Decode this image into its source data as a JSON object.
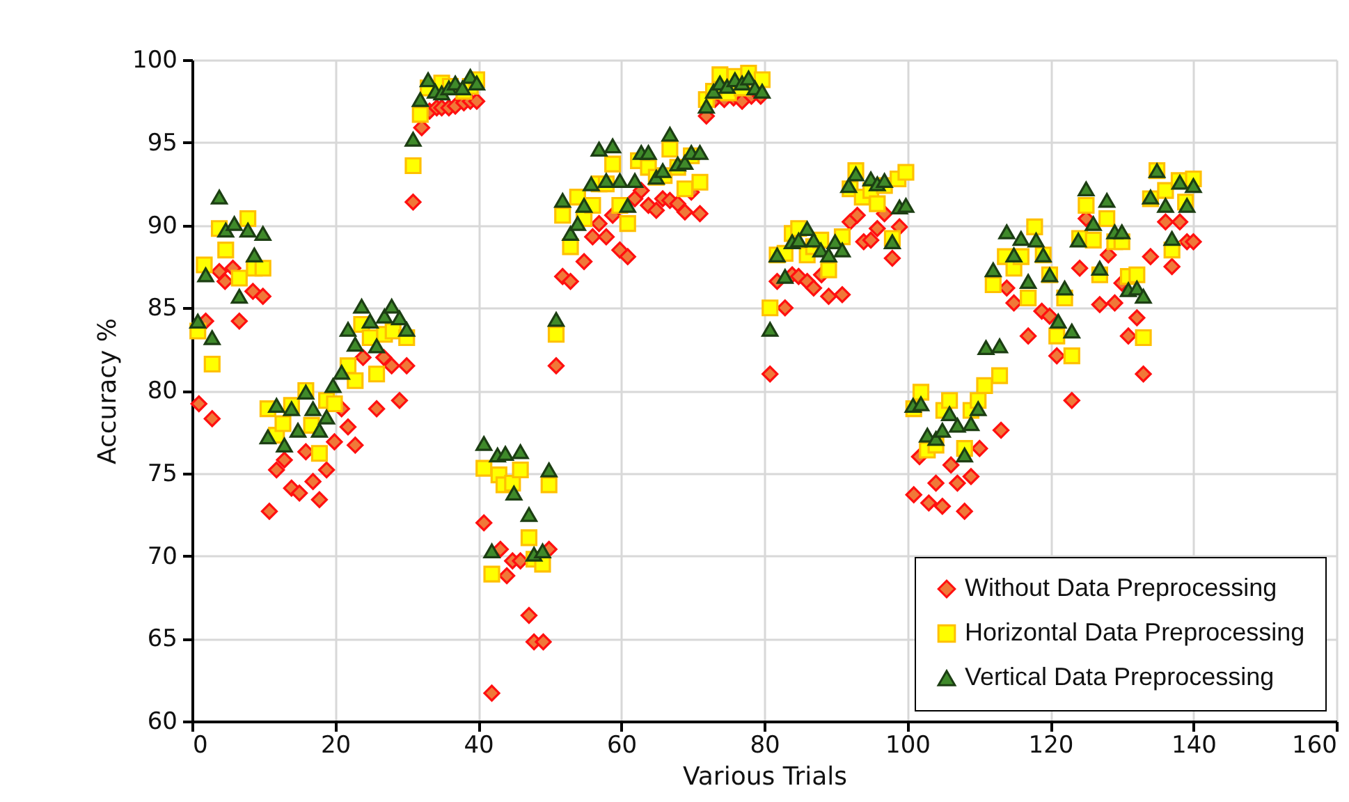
{
  "chart_data": {
    "type": "scatter",
    "xlabel": "Various Trials",
    "ylabel": "Accuracy %",
    "xlim": [
      0,
      160
    ],
    "xticks": [
      0,
      20,
      40,
      60,
      80,
      100,
      120,
      140,
      160
    ],
    "ylim": [
      60,
      100
    ],
    "yticks": [
      60,
      65,
      70,
      75,
      80,
      85,
      90,
      95,
      100
    ],
    "grid": true,
    "legend": "bottom right",
    "series": [
      {
        "name": "Without Data Preprocessing",
        "color": "#f07838",
        "marker": "diamond",
        "x": [
          0.95,
          1.9,
          2.8,
          3.8,
          4.6,
          5.7,
          6.6,
          8.5,
          9.9,
          10.8,
          11.8,
          12.9,
          13.9,
          15.0,
          15.9,
          16.9,
          17.8,
          18.8,
          19.9,
          20.9,
          21.8,
          22.8,
          23.9,
          25.8,
          26.8,
          27.9,
          29.0,
          30.0,
          30.9,
          32.1,
          33.2,
          34.2,
          34.9,
          35.9,
          36.8,
          38.0,
          38.9,
          39.8,
          40.8,
          41.9,
          43.1,
          44.0,
          44.8,
          45.9,
          47.1,
          47.8,
          49.1,
          49.9,
          50.9,
          51.8,
          52.9,
          54.8,
          56.0,
          56.9,
          57.9,
          58.8,
          59.8,
          60.9,
          61.9,
          62.8,
          63.8,
          64.9,
          65.8,
          66.8,
          67.9,
          68.9,
          69.8,
          71.0,
          71.9,
          73.1,
          74.4,
          75.7,
          76.9,
          78.2,
          79.5,
          80.8,
          81.8,
          82.9,
          83.9,
          84.8,
          86.0,
          86.9,
          88.0,
          89.0,
          90.9,
          92.0,
          93.0,
          93.9,
          94.9,
          95.8,
          96.8,
          97.9,
          98.9,
          100.9,
          101.7,
          103.0,
          104.0,
          104.9,
          106.1,
          107.0,
          108.0,
          108.9,
          110.1,
          113.1,
          113.9,
          114.9,
          116.9,
          118.8,
          119.9,
          120.9,
          123.0,
          124.1,
          125.0,
          126.9,
          128.1,
          129.0,
          130.0,
          130.9,
          132.1,
          133.0,
          134.0,
          136.1,
          137.0,
          138.1,
          139.1,
          140.0
        ],
        "values": [
          79.2,
          84.2,
          78.3,
          87.2,
          86.6,
          87.4,
          84.2,
          86.0,
          85.7,
          72.7,
          75.2,
          75.8,
          74.1,
          73.8,
          76.3,
          74.5,
          73.4,
          75.2,
          76.9,
          78.9,
          77.8,
          76.7,
          82.0,
          78.9,
          82.0,
          81.5,
          79.4,
          81.5,
          91.4,
          95.9,
          96.9,
          97.1,
          97.1,
          97.1,
          97.2,
          97.4,
          97.5,
          97.5,
          72.0,
          61.7,
          70.4,
          68.8,
          69.7,
          69.7,
          66.4,
          64.8,
          64.8,
          70.4,
          81.5,
          86.9,
          86.6,
          87.8,
          89.3,
          90.1,
          89.3,
          90.6,
          88.5,
          88.1,
          91.6,
          92.1,
          91.2,
          90.9,
          91.6,
          91.5,
          91.3,
          90.8,
          92.0,
          90.7,
          96.6,
          97.6,
          97.6,
          97.7,
          97.5,
          97.8,
          97.8,
          81.0,
          86.6,
          85.0,
          87.0,
          86.9,
          86.6,
          86.2,
          87.0,
          85.7,
          85.8,
          90.2,
          90.6,
          89.0,
          89.1,
          89.8,
          90.7,
          88.0,
          89.9,
          73.7,
          76.0,
          73.2,
          74.4,
          73.0,
          75.5,
          74.4,
          72.7,
          74.8,
          76.5,
          77.6,
          86.2,
          85.3,
          83.3,
          84.8,
          84.5,
          82.1,
          79.4,
          87.4,
          90.4,
          85.2,
          88.2,
          85.3,
          86.5,
          83.3,
          84.4,
          81.0,
          88.1,
          90.2,
          87.5,
          90.2,
          89.0,
          89.0
        ]
      },
      {
        "name": "Horizontal Data Preprocessing",
        "color": "#ffff00",
        "marker": "square",
        "x": [
          0.8,
          1.7,
          2.8,
          3.8,
          4.7,
          6.6,
          7.8,
          8.7,
          9.9,
          10.6,
          11.8,
          12.7,
          13.9,
          15.9,
          16.7,
          17.8,
          18.8,
          19.9,
          21.8,
          22.8,
          23.7,
          24.9,
          25.8,
          26.9,
          28.1,
          30.0,
          30.9,
          31.9,
          33.0,
          34.9,
          36.1,
          38.0,
          38.9,
          39.8,
          40.8,
          41.9,
          42.9,
          43.6,
          44.8,
          45.9,
          47.1,
          47.8,
          49.0,
          49.9,
          50.9,
          51.8,
          52.9,
          53.9,
          54.8,
          56.0,
          56.9,
          57.9,
          58.8,
          59.8,
          60.9,
          62.4,
          63.8,
          64.9,
          66.0,
          66.8,
          67.9,
          68.9,
          69.8,
          71.0,
          71.9,
          72.9,
          73.8,
          75.0,
          75.9,
          76.9,
          77.8,
          79.7,
          80.8,
          81.8,
          82.9,
          83.9,
          84.8,
          86.0,
          86.9,
          87.9,
          89.0,
          90.9,
          92.0,
          92.8,
          93.7,
          94.9,
          95.8,
          96.8,
          97.9,
          98.7,
          99.8,
          100.9,
          101.9,
          102.8,
          104.0,
          105.1,
          105.9,
          108.0,
          108.9,
          109.9,
          110.8,
          112.0,
          112.9,
          113.7,
          114.9,
          115.9,
          116.9,
          117.8,
          119.0,
          119.9,
          120.9,
          122.0,
          123.0,
          124.1,
          125.0,
          126.0,
          126.9,
          127.9,
          129.0,
          130.0,
          130.9,
          132.1,
          133.0,
          134.0,
          134.9,
          136.1,
          137.0,
          138.0,
          138.9,
          140.0
        ],
        "values": [
          83.6,
          87.6,
          81.6,
          89.8,
          88.5,
          86.8,
          90.4,
          87.4,
          87.4,
          78.9,
          77.3,
          78.0,
          79.1,
          80.0,
          77.9,
          76.2,
          79.4,
          79.2,
          81.5,
          80.6,
          84.0,
          83.2,
          81.0,
          83.4,
          83.6,
          83.2,
          93.6,
          96.7,
          98.3,
          98.6,
          98.4,
          98.1,
          98.4,
          98.8,
          75.3,
          68.9,
          74.9,
          74.3,
          74.4,
          75.2,
          71.1,
          69.8,
          69.5,
          74.3,
          83.4,
          90.6,
          88.7,
          91.7,
          90.4,
          91.2,
          92.5,
          92.5,
          93.7,
          91.2,
          90.1,
          93.9,
          93.5,
          92.9,
          93.0,
          94.6,
          93.5,
          92.2,
          94.2,
          92.6,
          97.6,
          98.1,
          99.1,
          98.0,
          99.0,
          98.3,
          99.2,
          98.8,
          85.0,
          88.2,
          88.3,
          89.5,
          89.8,
          88.2,
          88.7,
          89.1,
          87.3,
          89.3,
          92.2,
          93.3,
          91.7,
          92.1,
          91.3,
          92.4,
          89.2,
          92.8,
          93.2,
          78.9,
          79.9,
          76.4,
          76.7,
          78.8,
          79.4,
          76.5,
          78.8,
          79.4,
          80.3,
          86.4,
          80.9,
          88.1,
          87.4,
          88.1,
          85.6,
          89.9,
          88.2,
          87.0,
          83.3,
          85.6,
          82.1,
          89.2,
          91.2,
          89.1,
          87.0,
          90.4,
          89.0,
          89.0,
          86.9,
          87.0,
          83.2,
          91.6,
          93.3,
          92.1,
          88.5,
          92.7,
          91.4,
          92.8
        ]
      },
      {
        "name": "Vertical Data Preprocessing",
        "color": "#3f8a2a",
        "marker": "triangle",
        "x": [
          0.8,
          1.9,
          2.8,
          3.8,
          4.7,
          5.9,
          6.6,
          7.8,
          8.7,
          9.9,
          10.6,
          11.8,
          12.9,
          13.9,
          14.8,
          15.9,
          16.9,
          17.8,
          18.8,
          19.7,
          20.9,
          21.8,
          22.8,
          23.7,
          24.9,
          25.8,
          26.9,
          27.9,
          29.0,
          30.0,
          30.9,
          31.9,
          33.0,
          34.0,
          34.9,
          35.9,
          36.8,
          37.8,
          38.9,
          39.8,
          40.8,
          41.9,
          42.7,
          43.8,
          45.0,
          45.9,
          47.1,
          47.8,
          49.0,
          49.9,
          50.9,
          51.8,
          52.9,
          53.9,
          54.8,
          55.8,
          56.9,
          57.9,
          58.8,
          59.8,
          60.9,
          61.9,
          62.8,
          63.8,
          64.9,
          65.8,
          66.8,
          67.9,
          68.9,
          69.8,
          71.0,
          71.9,
          72.9,
          73.8,
          74.8,
          75.9,
          76.9,
          77.8,
          78.7,
          79.7,
          80.8,
          81.8,
          82.9,
          83.9,
          84.8,
          86.0,
          86.9,
          87.9,
          89.0,
          89.9,
          90.9,
          91.8,
          92.8,
          94.9,
          95.8,
          96.8,
          97.9,
          98.9,
          99.8,
          100.8,
          101.9,
          102.8,
          104.0,
          104.9,
          105.9,
          107.0,
          108.0,
          108.9,
          109.9,
          111.0,
          112.0,
          112.9,
          113.9,
          114.9,
          115.9,
          116.9,
          118.0,
          119.0,
          119.9,
          121.1,
          122.0,
          123.0,
          123.9,
          125.0,
          126.0,
          126.9,
          127.9,
          129.0,
          130.0,
          130.9,
          132.1,
          133.0,
          134.0,
          134.9,
          136.1,
          137.0,
          138.1,
          139.1,
          140.0
        ],
        "values": [
          84.2,
          87.0,
          83.2,
          91.7,
          89.7,
          90.1,
          85.7,
          89.7,
          88.2,
          89.5,
          77.2,
          79.1,
          76.7,
          78.9,
          77.6,
          79.9,
          78.9,
          77.6,
          78.4,
          80.3,
          81.1,
          83.7,
          82.8,
          85.1,
          84.2,
          82.7,
          84.5,
          85.1,
          84.4,
          83.7,
          95.2,
          97.6,
          98.8,
          98.1,
          98.0,
          98.3,
          98.6,
          98.3,
          99.0,
          98.6,
          76.8,
          70.3,
          76.1,
          76.2,
          73.8,
          76.3,
          72.5,
          70.1,
          70.3,
          75.2,
          84.3,
          91.5,
          89.5,
          90.1,
          91.2,
          92.5,
          94.6,
          92.7,
          94.8,
          92.7,
          91.2,
          92.7,
          94.4,
          94.4,
          92.9,
          93.3,
          95.5,
          93.7,
          93.8,
          94.4,
          94.4,
          97.2,
          98.1,
          98.6,
          98.4,
          98.8,
          98.6,
          98.9,
          98.3,
          98.1,
          83.7,
          88.2,
          86.9,
          89.0,
          89.1,
          89.8,
          89.1,
          88.5,
          88.2,
          89.0,
          88.5,
          92.4,
          93.1,
          92.8,
          92.5,
          92.7,
          89.0,
          91.1,
          91.2,
          79.1,
          79.2,
          77.3,
          77.1,
          77.6,
          78.6,
          77.9,
          76.1,
          78.0,
          78.9,
          82.6,
          87.3,
          82.7,
          89.6,
          88.2,
          89.2,
          86.6,
          89.1,
          88.2,
          87.0,
          84.2,
          86.2,
          83.6,
          89.1,
          92.2,
          90.1,
          87.4,
          91.5,
          89.6,
          89.6,
          86.1,
          86.2,
          85.7,
          91.7,
          93.3,
          91.2,
          89.2,
          92.6,
          91.2,
          92.4
        ]
      }
    ]
  }
}
